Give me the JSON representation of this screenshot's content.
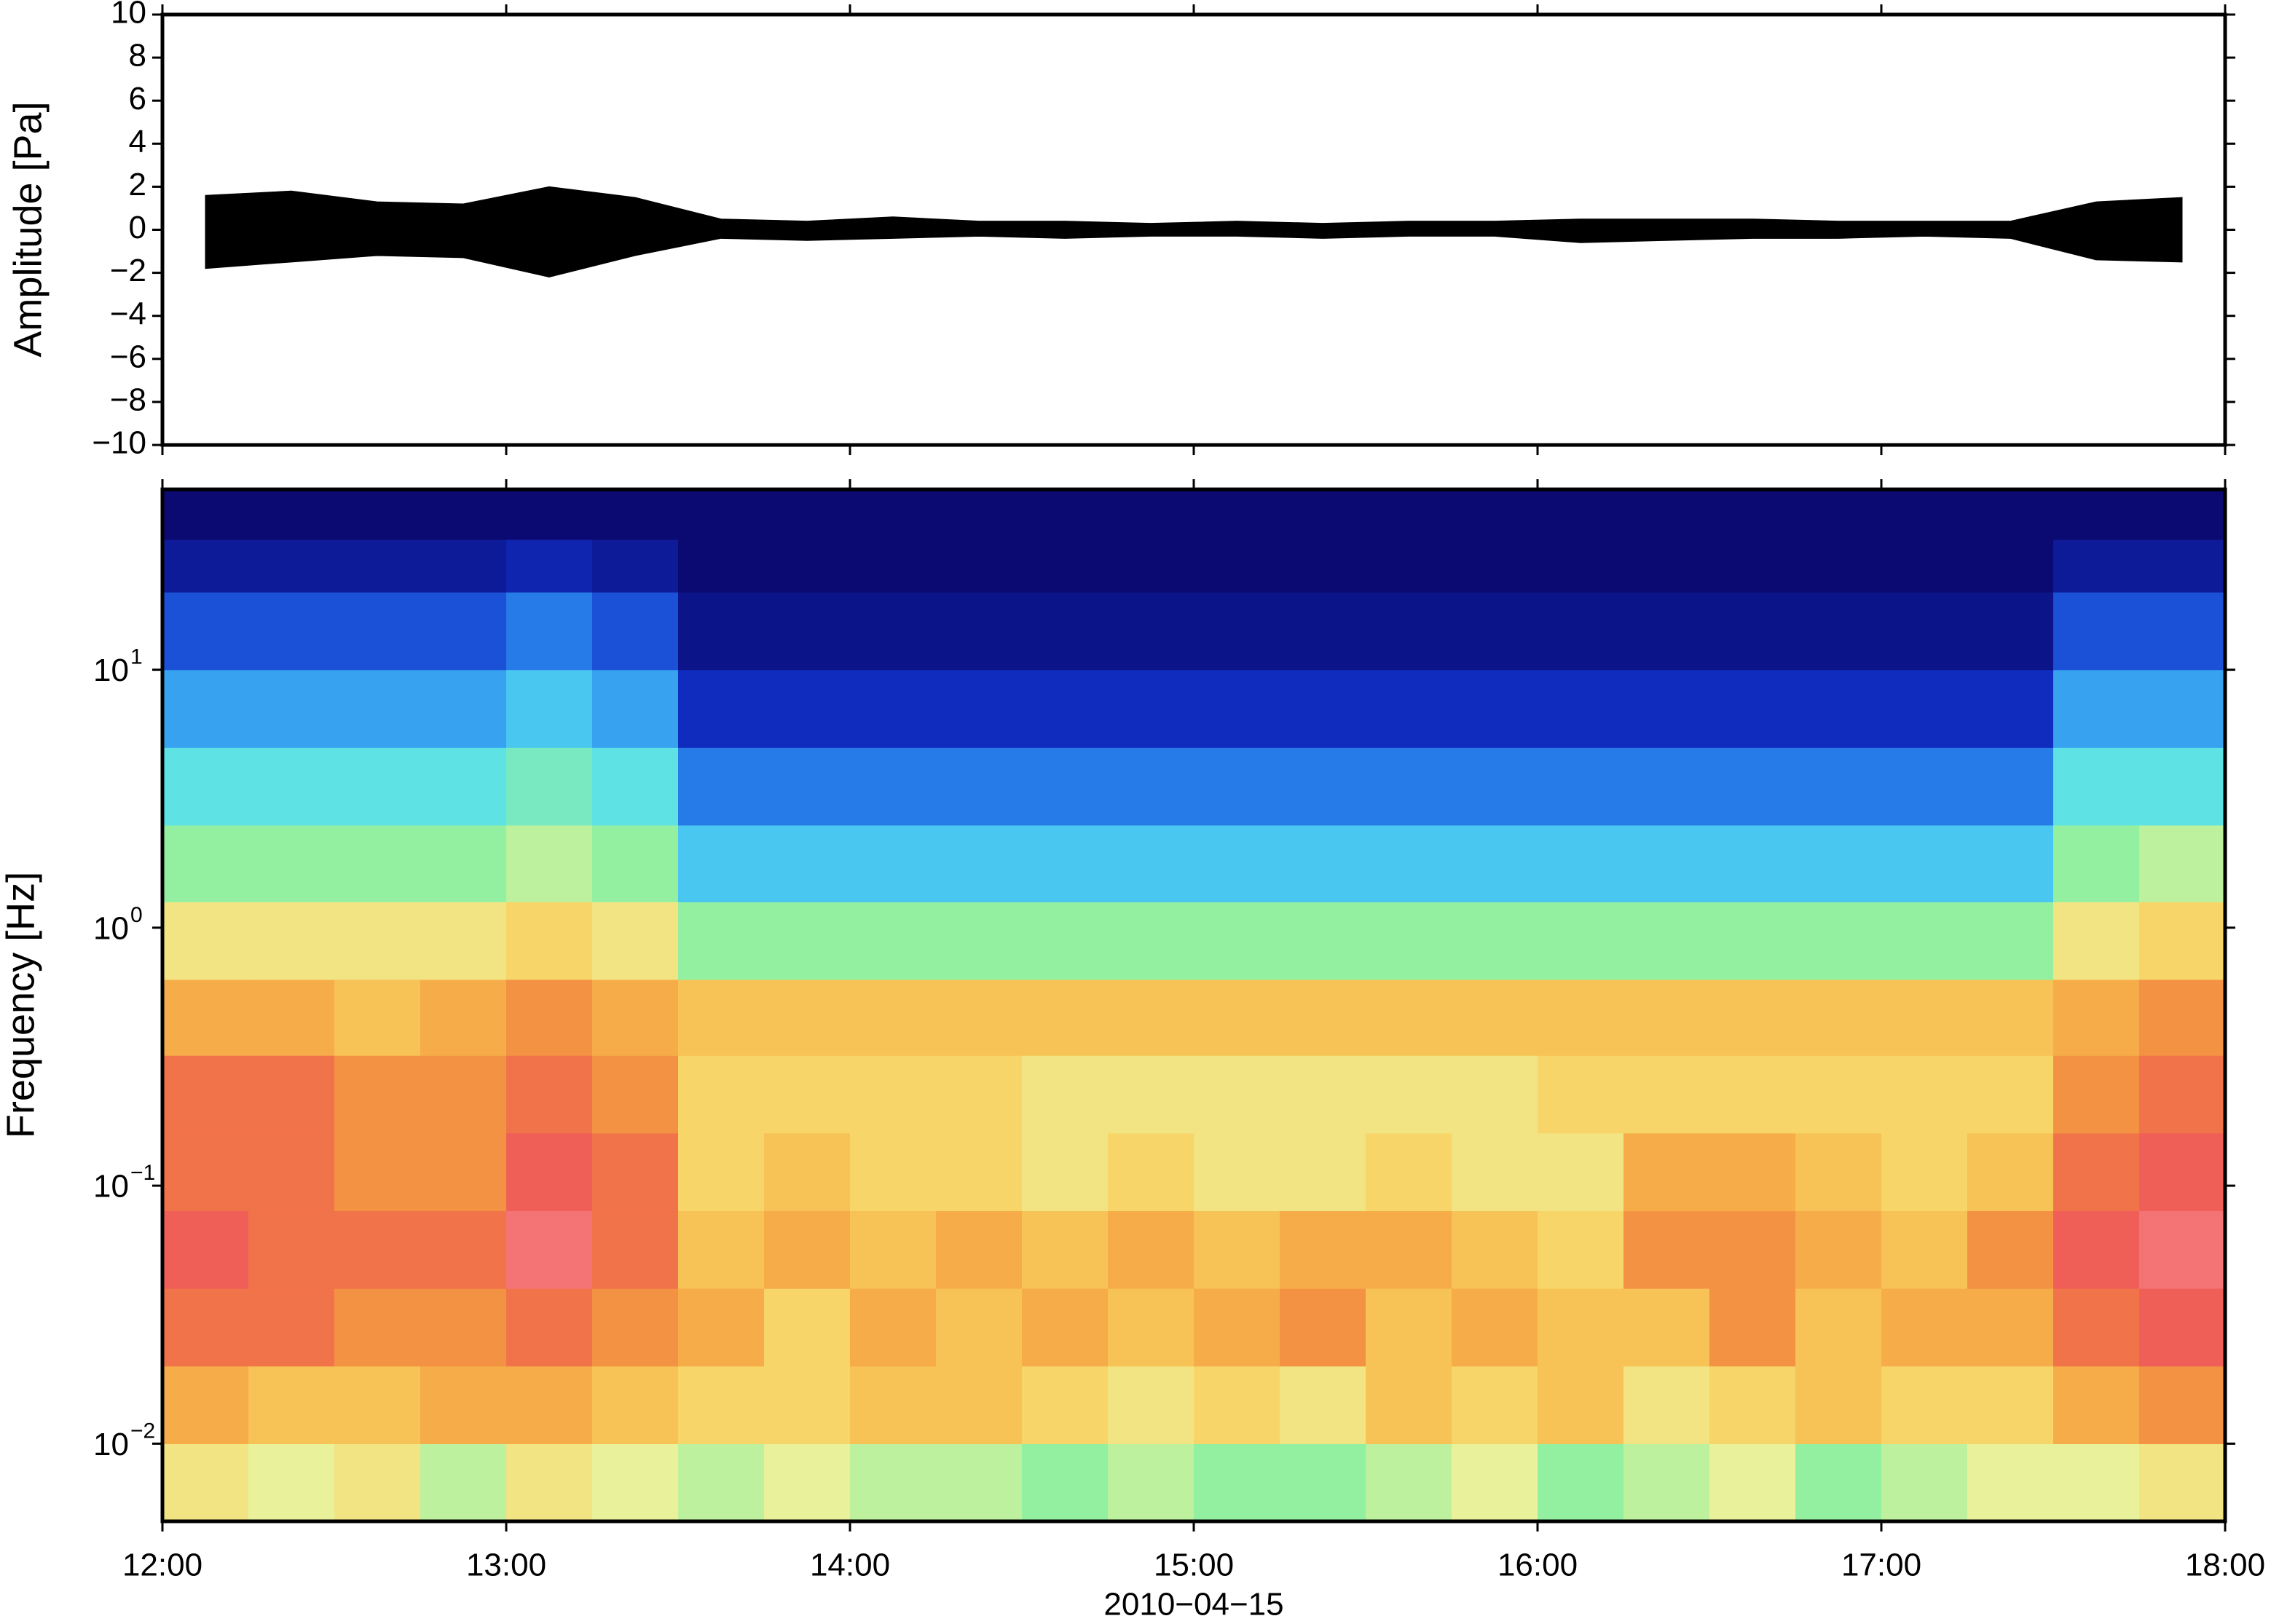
{
  "chart_data": [
    {
      "type": "area",
      "ylabel": "Amplitude [Pa]",
      "color": "#000000",
      "x": [
        12.125,
        12.375,
        12.625,
        12.875,
        13.125,
        13.375,
        13.625,
        13.875,
        14.125,
        14.375,
        14.625,
        14.875,
        15.125,
        15.375,
        15.625,
        15.875,
        16.125,
        16.375,
        16.625,
        16.875,
        17.125,
        17.375,
        17.625,
        17.875
      ],
      "envelope_max": [
        1.6,
        1.8,
        1.3,
        1.2,
        2.0,
        1.5,
        0.5,
        0.4,
        0.6,
        0.4,
        0.4,
        0.3,
        0.4,
        0.3,
        0.4,
        0.4,
        0.5,
        0.5,
        0.5,
        0.4,
        0.4,
        0.4,
        1.3,
        1.5
      ],
      "envelope_min": [
        -1.8,
        -1.5,
        -1.2,
        -1.3,
        -2.2,
        -1.2,
        -0.4,
        -0.5,
        -0.4,
        -0.3,
        -0.4,
        -0.3,
        -0.3,
        -0.4,
        -0.3,
        -0.3,
        -0.6,
        -0.5,
        -0.4,
        -0.4,
        -0.3,
        -0.4,
        -1.4,
        -1.5
      ],
      "ylim": [
        -10,
        10
      ],
      "yticks": [
        {
          "value": -10,
          "label": "−10"
        },
        {
          "value": -8,
          "label": "−8"
        },
        {
          "value": -6,
          "label": "−6"
        },
        {
          "value": -4,
          "label": "−4"
        },
        {
          "value": -2,
          "label": "−2"
        },
        0,
        2,
        4,
        6,
        8,
        10
      ]
    },
    {
      "type": "heatmap",
      "ylabel": "Frequency [Hz]",
      "xlabel": "2010−04−15",
      "log_y": true,
      "xlim": [
        12,
        18
      ],
      "xticks": [
        {
          "value": 12,
          "label": "12:00"
        },
        {
          "value": 13,
          "label": "13:00"
        },
        {
          "value": 14,
          "label": "14:00"
        },
        {
          "value": 15,
          "label": "15:00"
        },
        {
          "value": 16,
          "label": "16:00"
        },
        {
          "value": 17,
          "label": "17:00"
        },
        {
          "value": 18,
          "label": "18:00"
        }
      ],
      "ylim": [
        0.005,
        50
      ],
      "yticks": [
        {
          "value": 0.01,
          "label": "10",
          "exponent": "−2"
        },
        {
          "value": 0.1,
          "label": "10",
          "exponent": "−1"
        },
        {
          "value": 1,
          "label": "10",
          "exponent": "0"
        },
        {
          "value": 10,
          "label": "10",
          "exponent": "1"
        }
      ],
      "xbins": [
        12,
        12.25,
        12.5,
        12.75,
        13,
        13.25,
        13.5,
        13.75,
        14,
        14.25,
        14.5,
        14.75,
        15,
        15.25,
        15.5,
        15.75,
        16,
        16.25,
        16.5,
        16.75,
        17,
        17.25,
        17.5,
        17.75,
        18
      ],
      "ybins": [
        0.005,
        0.01,
        0.02,
        0.04,
        0.08,
        0.16,
        0.32,
        0.63,
        1.26,
        2.5,
        5,
        10,
        20,
        32,
        50
      ],
      "zlim": [
        0,
        10
      ],
      "colormap": [
        "#0b0a72",
        "#1030c8",
        "#2d8ef0",
        "#56dff0",
        "#8ef0a0",
        "#eef29a",
        "#f8d060",
        "#f5a040",
        "#ef5a50",
        "#f88a94"
      ],
      "z": [
        [
          6,
          5.5,
          6,
          5,
          6,
          5.5,
          5,
          5.5,
          5,
          5,
          4.5,
          5,
          4.5,
          4.5,
          5,
          5.5,
          4.5,
          5,
          5.5,
          4.5,
          5,
          5.5,
          5.5,
          6
        ],
        [
          7.5,
          7,
          7,
          7.5,
          7.5,
          7,
          6.5,
          6.5,
          7,
          7,
          6.5,
          6,
          6.5,
          6,
          7,
          6.5,
          7,
          6,
          6.5,
          7,
          6.5,
          6.5,
          7.5,
          8
        ],
        [
          8.5,
          8.5,
          8,
          8,
          8.5,
          8,
          7.5,
          6.5,
          7.5,
          7,
          7.5,
          7,
          7.5,
          8,
          7,
          7.5,
          7,
          7,
          8,
          7,
          7.5,
          7.5,
          8.5,
          9
        ],
        [
          9,
          8.5,
          8.5,
          8.5,
          9.5,
          8.5,
          7,
          7.5,
          7,
          7.5,
          7,
          7.5,
          7,
          7.5,
          7.5,
          7,
          6.5,
          8,
          8,
          7.5,
          7,
          8,
          9,
          9.5
        ],
        [
          8.5,
          8.5,
          8,
          8,
          9,
          8.5,
          6.5,
          7,
          6.5,
          6.5,
          6,
          6.5,
          6,
          6,
          6.5,
          6,
          6,
          7.5,
          7.5,
          7,
          6.5,
          7,
          8.5,
          9
        ],
        [
          8.5,
          8.5,
          8,
          8,
          8.5,
          8,
          6.5,
          6.5,
          6.5,
          6.5,
          6,
          6,
          6,
          6,
          6,
          6,
          6.5,
          6.5,
          6.5,
          6.5,
          6.5,
          6.5,
          8,
          8.5
        ],
        [
          7.5,
          7.5,
          7,
          7.5,
          8,
          7.5,
          7,
          7,
          7,
          7,
          7,
          7,
          7,
          7,
          7,
          7,
          7,
          7,
          7,
          7,
          7,
          7,
          7.5,
          8
        ],
        [
          6,
          6,
          6,
          6,
          6.5,
          6,
          4.5,
          4.5,
          4.5,
          4.5,
          4.5,
          4.5,
          4.5,
          4.5,
          4.5,
          4.5,
          4.5,
          4.5,
          4.5,
          4.5,
          4.5,
          4.5,
          6,
          6.5
        ],
        [
          4.5,
          4.5,
          4.5,
          4.5,
          5,
          4.5,
          3,
          3,
          3,
          3,
          3,
          3,
          3,
          3,
          3,
          3,
          3,
          3,
          3,
          3,
          3,
          3,
          4.5,
          5
        ],
        [
          3.5,
          3.5,
          3.5,
          3.5,
          4,
          3.5,
          2,
          2,
          2,
          2,
          2,
          2,
          2,
          2,
          2,
          2,
          2,
          2,
          2,
          2,
          2,
          2,
          3.5,
          3.5
        ],
        [
          2.5,
          2.5,
          2.5,
          2.5,
          3,
          2.5,
          1,
          1,
          1,
          1,
          1,
          1,
          1,
          1,
          1,
          1,
          1,
          1,
          1,
          1,
          1,
          1,
          2.5,
          2.5
        ],
        [
          1.5,
          1.5,
          1.5,
          1.5,
          2,
          1.5,
          0.3,
          0.3,
          0.3,
          0.3,
          0.3,
          0.3,
          0.3,
          0.3,
          0.3,
          0.3,
          0.3,
          0.3,
          0.3,
          0.3,
          0.3,
          0.3,
          1.5,
          1.5
        ],
        [
          0.5,
          0.5,
          0.5,
          0.5,
          0.8,
          0.5,
          0,
          0,
          0,
          0,
          0,
          0,
          0,
          0,
          0,
          0,
          0,
          0,
          0,
          0,
          0,
          0,
          0.5,
          0.5
        ],
        [
          0,
          0,
          0,
          0,
          0,
          0,
          0,
          0,
          0,
          0,
          0,
          0,
          0,
          0,
          0,
          0,
          0,
          0,
          0,
          0,
          0,
          0,
          0,
          0
        ]
      ]
    }
  ]
}
